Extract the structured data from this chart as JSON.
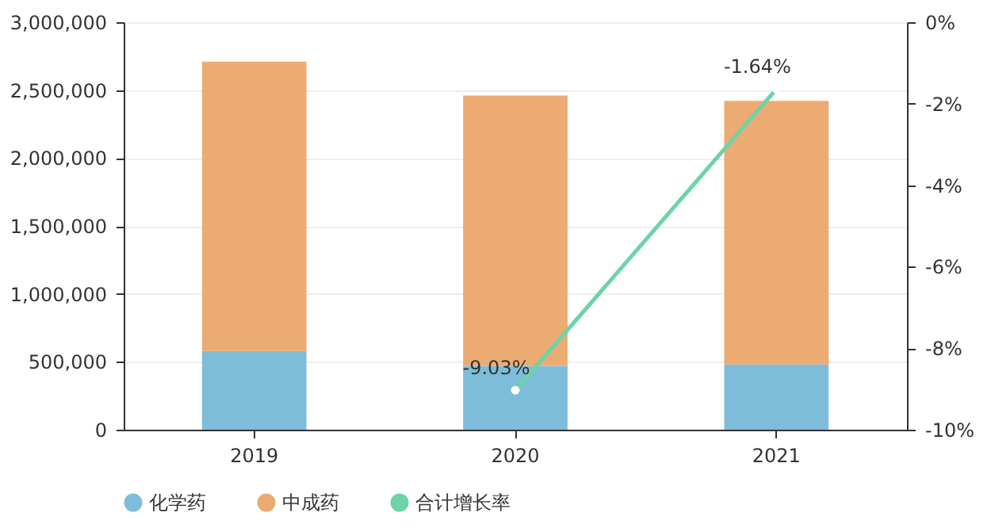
{
  "chart_data": {
    "type": "bar",
    "stacked": true,
    "categories": [
      "2019",
      "2020",
      "2021"
    ],
    "series": [
      {
        "name": "化学药",
        "color": "#7ebdd9",
        "values": [
          580000,
          470000,
          480000
        ]
      },
      {
        "name": "中成药",
        "color": "#ecab72",
        "values": [
          2130000,
          1990000,
          1940000
        ]
      },
      {
        "name": "合计增长率",
        "type": "line",
        "axis": "y2",
        "color": "#6dd3a8",
        "marker": "circle",
        "values": [
          null,
          -9.03,
          -1.64
        ],
        "value_labels": [
          null,
          "-9.03%",
          "-1.64%"
        ]
      }
    ],
    "ylim": [
      0,
      3000000
    ],
    "yticks": [
      {
        "value": 0,
        "label": "0"
      },
      {
        "value": 500000,
        "label": "500,000"
      },
      {
        "value": 1000000,
        "label": "1,000,000"
      },
      {
        "value": 1500000,
        "label": "1,500,000"
      },
      {
        "value": 2000000,
        "label": "2,000,000"
      },
      {
        "value": 2500000,
        "label": "2,500,000"
      },
      {
        "value": 3000000,
        "label": "3,000,000"
      }
    ],
    "y2lim": [
      -10,
      0
    ],
    "y2ticks": [
      {
        "value": -10,
        "label": "-10%"
      },
      {
        "value": -8,
        "label": "-8%"
      },
      {
        "value": -6,
        "label": "-6%"
      },
      {
        "value": -4,
        "label": "-4%"
      },
      {
        "value": -2,
        "label": "-2%"
      },
      {
        "value": 0,
        "label": "0%"
      }
    ],
    "grid": "y",
    "legend": "bottom"
  }
}
